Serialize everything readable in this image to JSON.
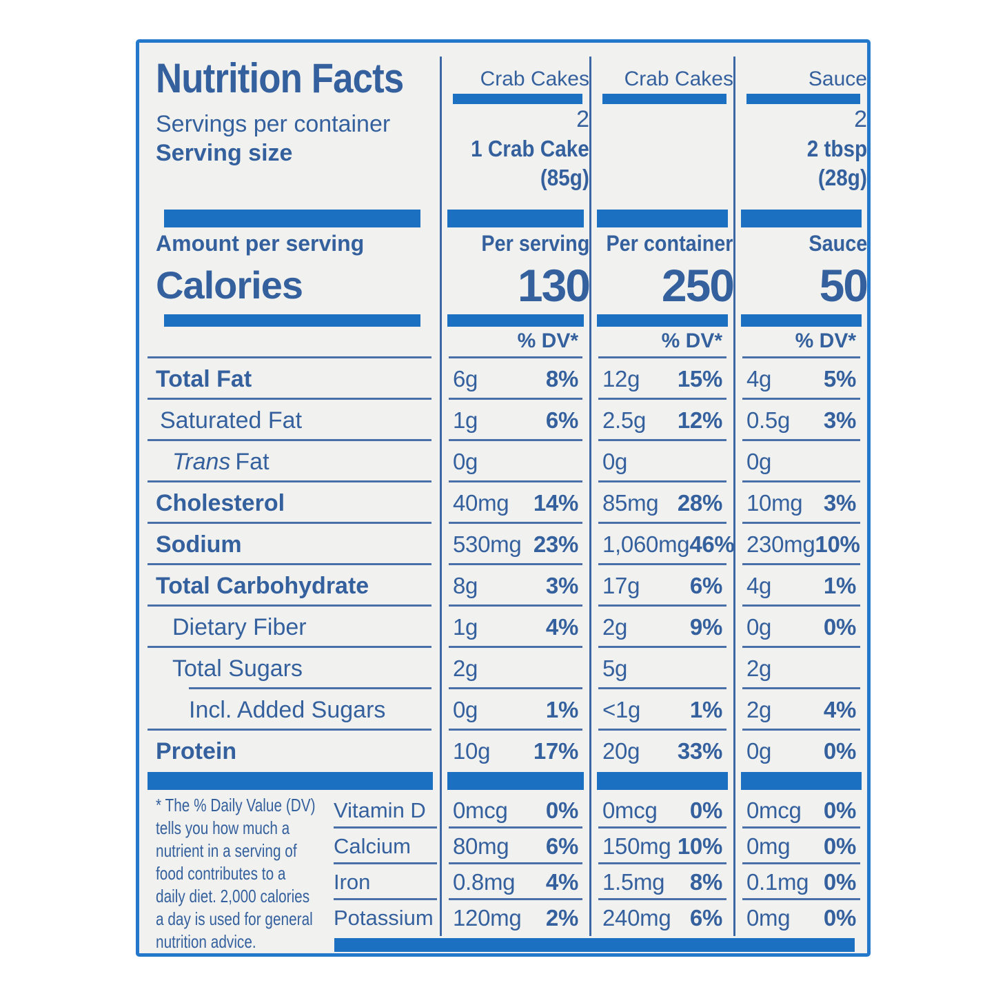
{
  "label": {
    "title": "Nutrition Facts",
    "servings_per_container_label": "Servings per container",
    "serving_size_label": "Serving size",
    "amount_per_serving_label": "Amount per serving",
    "calories_label": "Calories",
    "dv_header": "% DV*",
    "columns": [
      {
        "header": "Crab Cakes",
        "servings": "2",
        "serving_size_line1": "1 Crab Cake",
        "serving_size_line2": "(85g)",
        "calories_caption": "Per serving",
        "calories": "130"
      },
      {
        "header": "Crab Cakes",
        "servings": "",
        "serving_size_line1": "",
        "serving_size_line2": "",
        "calories_caption": "Per container",
        "calories": "250"
      },
      {
        "header": "Sauce",
        "servings": "2",
        "serving_size_line1": "2 tbsp",
        "serving_size_line2": "(28g)",
        "calories_caption": "Sauce",
        "calories": "50"
      }
    ],
    "nutrients": [
      {
        "name": "Total Fat",
        "values": [
          [
            "6g",
            "8%"
          ],
          [
            "12g",
            "15%"
          ],
          [
            "4g",
            "5%"
          ]
        ]
      },
      {
        "name": "Saturated Fat",
        "values": [
          [
            "1g",
            "6%"
          ],
          [
            "2.5g",
            "12%"
          ],
          [
            "0.5g",
            "3%"
          ]
        ]
      },
      {
        "name_italic": "Trans",
        "name": "Fat",
        "values": [
          [
            "0g",
            ""
          ],
          [
            "0g",
            ""
          ],
          [
            "0g",
            ""
          ]
        ]
      },
      {
        "name": "Cholesterol",
        "values": [
          [
            "40mg",
            "14%"
          ],
          [
            "85mg",
            "28%"
          ],
          [
            "10mg",
            "3%"
          ]
        ]
      },
      {
        "name": "Sodium",
        "values": [
          [
            "530mg",
            "23%"
          ],
          [
            "1,060mg",
            "46%"
          ],
          [
            "230mg",
            "10%"
          ]
        ]
      },
      {
        "name": "Total Carbohydrate",
        "values": [
          [
            "8g",
            "3%"
          ],
          [
            "17g",
            "6%"
          ],
          [
            "4g",
            "1%"
          ]
        ]
      },
      {
        "name": "Dietary Fiber",
        "values": [
          [
            "1g",
            "4%"
          ],
          [
            "2g",
            "9%"
          ],
          [
            "0g",
            "0%"
          ]
        ]
      },
      {
        "name": "Total Sugars",
        "values": [
          [
            "2g",
            ""
          ],
          [
            "5g",
            ""
          ],
          [
            "2g",
            ""
          ]
        ]
      },
      {
        "name": "Incl. Added Sugars",
        "values": [
          [
            "0g",
            "1%"
          ],
          [
            "<1g",
            "1%"
          ],
          [
            "2g",
            "4%"
          ]
        ]
      },
      {
        "name": "Protein",
        "values": [
          [
            "10g",
            "17%"
          ],
          [
            "20g",
            "33%"
          ],
          [
            "0g",
            "0%"
          ]
        ]
      }
    ],
    "vitamins": [
      {
        "name": "Vitamin D",
        "values": [
          [
            "0mcg",
            "0%"
          ],
          [
            "0mcg",
            "0%"
          ],
          [
            "0mcg",
            "0%"
          ]
        ]
      },
      {
        "name": "Calcium",
        "values": [
          [
            "80mg",
            "6%"
          ],
          [
            "150mg",
            "10%"
          ],
          [
            "0mg",
            "0%"
          ]
        ]
      },
      {
        "name": "Iron",
        "values": [
          [
            "0.8mg",
            "4%"
          ],
          [
            "1.5mg",
            "8%"
          ],
          [
            "0.1mg",
            "0%"
          ]
        ]
      },
      {
        "name": "Potassium",
        "values": [
          [
            "120mg",
            "2%"
          ],
          [
            "240mg",
            "6%"
          ],
          [
            "0mg",
            "0%"
          ]
        ]
      }
    ],
    "footnote_lines": [
      "* The % Daily Value (DV)",
      "tells you how much a",
      "nutrient in a serving of",
      "food contributes to a",
      "daily diet. 2,000 calories",
      "a day is used for general",
      "nutrition advice."
    ]
  },
  "colors": {
    "bar_blue": "#1c70c2",
    "text_blue": "#35609e",
    "border_blue": "#2478cb",
    "rule_blue": "#4a6fa8",
    "divider_blue": "#3c66a4",
    "label_bg": "#f1f2ef",
    "page_bg": "#ffffff"
  }
}
